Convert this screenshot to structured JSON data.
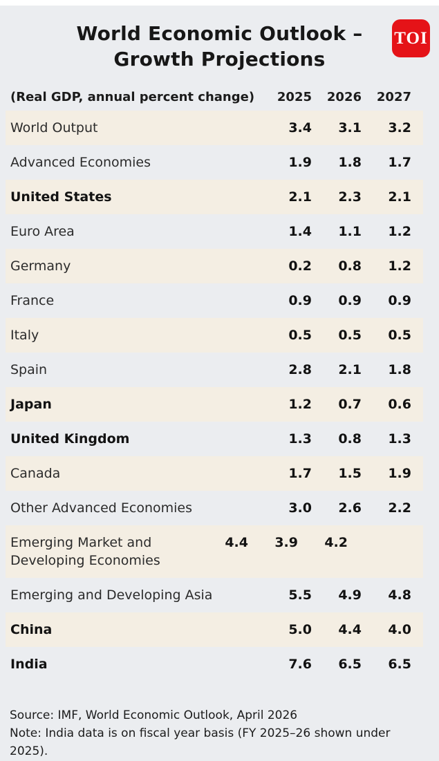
{
  "header": {
    "title_line1": "World Economic Outlook –",
    "title_line2": "Growth Projections",
    "logo_text": "TOI"
  },
  "table": {
    "caption": "(Real GDP, annual percent change)",
    "years": [
      "2025",
      "2026",
      "2027"
    ],
    "rows": [
      {
        "label": "World Output",
        "bold": false,
        "values": [
          "3.4",
          "3.1",
          "3.2"
        ]
      },
      {
        "label": "Advanced Economies",
        "bold": false,
        "values": [
          "1.9",
          "1.8",
          "1.7"
        ]
      },
      {
        "label": "United States",
        "bold": true,
        "values": [
          "2.1",
          "2.3",
          "2.1"
        ]
      },
      {
        "label": "Euro Area",
        "bold": false,
        "values": [
          "1.4",
          "1.1",
          "1.2"
        ]
      },
      {
        "label": "Germany",
        "bold": false,
        "values": [
          "0.2",
          "0.8",
          "1.2"
        ]
      },
      {
        "label": "France",
        "bold": false,
        "values": [
          "0.9",
          "0.9",
          "0.9"
        ]
      },
      {
        "label": "Italy",
        "bold": false,
        "values": [
          "0.5",
          "0.5",
          "0.5"
        ]
      },
      {
        "label": "Spain",
        "bold": false,
        "values": [
          "2.8",
          "2.1",
          "1.8"
        ]
      },
      {
        "label": "Japan",
        "bold": true,
        "values": [
          "1.2",
          "0.7",
          "0.6"
        ]
      },
      {
        "label": "United Kingdom",
        "bold": true,
        "values": [
          "1.3",
          "0.8",
          "1.3"
        ]
      },
      {
        "label": "Canada",
        "bold": false,
        "values": [
          "1.7",
          "1.5",
          "1.9"
        ]
      },
      {
        "label": "Other Advanced Economies",
        "bold": false,
        "values": [
          "3.0",
          "2.6",
          "2.2"
        ]
      },
      {
        "label": "Emerging Market and Developing Economies",
        "bold": false,
        "values": [
          "4.4",
          "3.9",
          "4.2"
        ]
      },
      {
        "label": "Emerging and Developing Asia",
        "bold": false,
        "values": [
          "5.5",
          "4.9",
          "4.8"
        ]
      },
      {
        "label": "China",
        "bold": true,
        "values": [
          "5.0",
          "4.4",
          "4.0"
        ]
      },
      {
        "label": "India",
        "bold": true,
        "values": [
          "7.6",
          "6.5",
          "6.5"
        ]
      }
    ]
  },
  "footer": {
    "source": "Source: IMF, World Economic Outlook, April 2026",
    "note": "Note: India data is on fiscal year basis (FY 2025–26 shown under 2025)."
  },
  "colors": {
    "accent_red": "#e51318",
    "stripe_beige": "#f4eee3",
    "background_gray": "#ebedf0",
    "text": "#161616"
  },
  "chart_data": {
    "type": "table",
    "title": "World Economic Outlook – Growth Projections",
    "subtitle": "(Real GDP, annual percent change)",
    "columns": [
      "2025",
      "2026",
      "2027"
    ],
    "rows": [
      {
        "label": "World Output",
        "values": [
          3.4,
          3.1,
          3.2
        ]
      },
      {
        "label": "Advanced Economies",
        "values": [
          1.9,
          1.8,
          1.7
        ]
      },
      {
        "label": "United States",
        "values": [
          2.1,
          2.3,
          2.1
        ]
      },
      {
        "label": "Euro Area",
        "values": [
          1.4,
          1.1,
          1.2
        ]
      },
      {
        "label": "Germany",
        "values": [
          0.2,
          0.8,
          1.2
        ]
      },
      {
        "label": "France",
        "values": [
          0.9,
          0.9,
          0.9
        ]
      },
      {
        "label": "Italy",
        "values": [
          0.5,
          0.5,
          0.5
        ]
      },
      {
        "label": "Spain",
        "values": [
          2.8,
          2.1,
          1.8
        ]
      },
      {
        "label": "Japan",
        "values": [
          1.2,
          0.7,
          0.6
        ]
      },
      {
        "label": "United Kingdom",
        "values": [
          1.3,
          0.8,
          1.3
        ]
      },
      {
        "label": "Canada",
        "values": [
          1.7,
          1.5,
          1.9
        ]
      },
      {
        "label": "Other Advanced Economies",
        "values": [
          3.0,
          2.6,
          2.2
        ]
      },
      {
        "label": "Emerging Market and Developing Economies",
        "values": [
          4.4,
          3.9,
          4.2
        ]
      },
      {
        "label": "Emerging and Developing Asia",
        "values": [
          5.5,
          4.9,
          4.8
        ]
      },
      {
        "label": "China",
        "values": [
          5.0,
          4.4,
          4.0
        ]
      },
      {
        "label": "India",
        "values": [
          7.6,
          6.5,
          6.5
        ]
      }
    ],
    "source": "IMF, World Economic Outlook, April 2026",
    "note": "India data is on fiscal year basis (FY 2025–26 shown under 2025)."
  }
}
